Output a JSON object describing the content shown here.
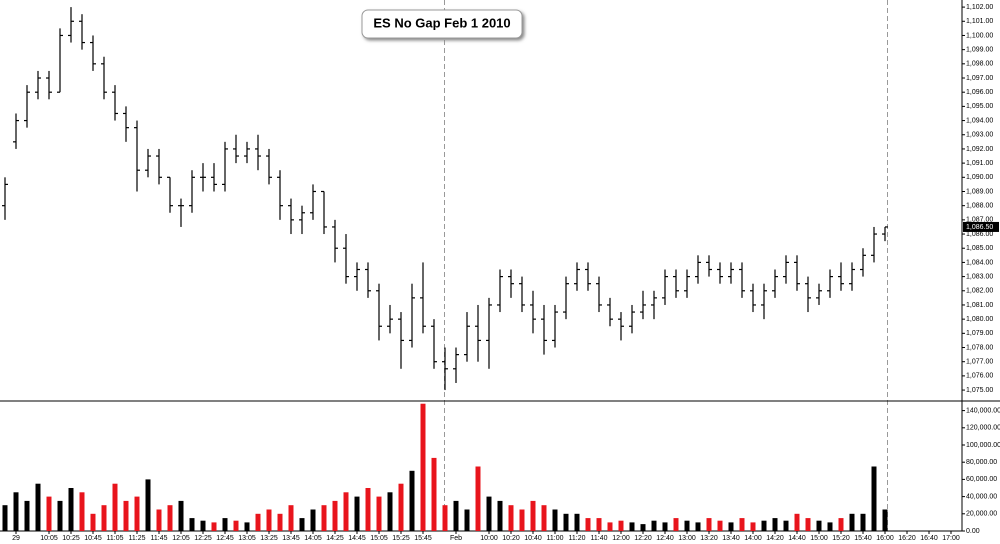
{
  "chart_data": {
    "type": "ohlc",
    "title": "ES No Gap Feb 1 2010",
    "categories": [
      null,
      "29",
      null,
      null,
      "10:05",
      null,
      "10:25",
      null,
      "10:45",
      null,
      "11:05",
      null,
      "11:25",
      null,
      "11:45",
      null,
      "12:05",
      null,
      "12:25",
      null,
      "12:45",
      null,
      "13:05",
      null,
      "13:25",
      null,
      "13:45",
      null,
      "14:05",
      null,
      "14:25",
      null,
      "14:45",
      null,
      "15:05",
      null,
      "15:25",
      null,
      "15:45",
      null,
      null,
      "Feb",
      null,
      null,
      "10:00",
      null,
      "10:20",
      null,
      "10:40",
      null,
      "11:00",
      null,
      "11:20",
      null,
      "11:40",
      null,
      "12:00",
      null,
      "12:20",
      null,
      "12:40",
      null,
      "13:00",
      null,
      "13:20",
      null,
      "13:40",
      null,
      "14:00",
      null,
      "14:20",
      null,
      "14:40",
      null,
      "15:00",
      null,
      "15:20",
      null,
      "15:40",
      null,
      "16:00",
      null,
      "16:20",
      null,
      "16:40",
      null,
      "17:00"
    ],
    "open": [
      1088,
      1092.5,
      1094,
      1096,
      1097,
      1096,
      1100,
      1101,
      1099.5,
      1098,
      1096,
      1094.5,
      1093.5,
      1090.5,
      1091.5,
      1090,
      1088,
      1088,
      1090,
      1090,
      1089.5,
      1092,
      1091.5,
      1092,
      1091.5,
      1090,
      1088,
      1087,
      1087.5,
      1089,
      1086.5,
      1085,
      1083,
      1083.5,
      1082,
      1079.5,
      1080,
      1078.5,
      1081.5,
      1079.5,
      1077,
      1076.5,
      1077.5,
      1079.5,
      1078.5,
      1081,
      1083,
      1082.5,
      1081,
      1080,
      1078.5,
      1080.5,
      1082.5,
      1083.5,
      1082.5,
      1081,
      1080,
      1079.5,
      1080.5,
      1081,
      1081.5,
      1083,
      1082,
      1083,
      1084,
      1083.5,
      1083,
      1083.5,
      1082,
      1081,
      1082,
      1083,
      1084,
      1082.5,
      1081.5,
      1082,
      1083,
      1082.5,
      1083.5,
      1084.5,
      1086,
      null,
      null,
      null,
      null,
      null,
      null
    ],
    "high": [
      1090,
      1094.5,
      1096.5,
      1097.5,
      1097.5,
      1100.5,
      1102,
      1101.5,
      1100,
      1098.5,
      1096.5,
      1095,
      1094,
      1092,
      1092,
      1090,
      1088.5,
      1090.5,
      1091,
      1091,
      1092.5,
      1093,
      1092.5,
      1093,
      1092,
      1090.5,
      1088.5,
      1088,
      1089.5,
      1089,
      1087,
      1086,
      1084,
      1084,
      1082.5,
      1081,
      1080.5,
      1082.5,
      1084,
      1080,
      1078,
      1078,
      1080.5,
      1081,
      1081.5,
      1083.5,
      1083.5,
      1083,
      1082,
      1081,
      1081,
      1083,
      1084,
      1084,
      1083,
      1081.5,
      1080.5,
      1081,
      1082,
      1082,
      1083.5,
      1083.5,
      1083.5,
      1084.5,
      1084.5,
      1084,
      1084,
      1084,
      1082.5,
      1082.5,
      1083.5,
      1084.5,
      1084.5,
      1083,
      1082.5,
      1083.5,
      1084,
      1084,
      1085,
      1086.5,
      1086.5,
      null,
      null,
      null,
      null,
      null,
      null
    ],
    "low": [
      1087,
      1092,
      1093.5,
      1095.5,
      1095.5,
      1096,
      1099.5,
      1099,
      1097.5,
      1095.5,
      1094,
      1092.5,
      1089,
      1090,
      1089.5,
      1087.5,
      1086.5,
      1087.5,
      1089,
      1089,
      1089,
      1091,
      1091,
      1090.5,
      1089.5,
      1087,
      1086,
      1086,
      1087,
      1086,
      1084,
      1082.5,
      1082,
      1081.5,
      1078.5,
      1079,
      1076.5,
      1078,
      1079,
      1076.5,
      1075,
      1075.5,
      1077,
      1077,
      1076.5,
      1080.5,
      1081.5,
      1080.5,
      1079,
      1077.5,
      1078,
      1080,
      1082,
      1082,
      1080.5,
      1079.5,
      1078.5,
      1079,
      1080,
      1080,
      1081,
      1081.5,
      1081.5,
      1082.5,
      1083,
      1082.5,
      1082.5,
      1081.5,
      1080.5,
      1080,
      1081.5,
      1082.5,
      1082,
      1080.5,
      1081,
      1081.5,
      1082,
      1082,
      1083,
      1084,
      1085.5,
      null,
      null,
      null,
      null,
      null,
      null
    ],
    "close": [
      1089.5,
      1094,
      1096,
      1097,
      1096,
      1100,
      1101,
      1099.5,
      1098,
      1096,
      1094.5,
      1093.5,
      1090.5,
      1091.5,
      1090,
      1088,
      1088,
      1090,
      1090,
      1089.5,
      1092,
      1091.5,
      1092,
      1091.5,
      1090,
      1088,
      1087,
      1087.5,
      1089,
      1086.5,
      1085,
      1083,
      1083.5,
      1082,
      1079.5,
      1080,
      1078.5,
      1081.5,
      1079.5,
      1077,
      1076.5,
      1077.5,
      1079.5,
      1078.5,
      1081,
      1083,
      1082.5,
      1081,
      1080,
      1078.5,
      1080.5,
      1082.5,
      1083.5,
      1082.5,
      1081,
      1080,
      1079.5,
      1080.5,
      1081,
      1081.5,
      1083,
      1082,
      1083,
      1084,
      1083.5,
      1083,
      1083.5,
      1082,
      1081,
      1082,
      1083,
      1084,
      1082.5,
      1081.5,
      1082,
      1083,
      1082.5,
      1083.5,
      1084.5,
      1086,
      1086.5,
      null,
      null,
      null,
      null,
      null,
      null
    ],
    "volume": [
      30000,
      45000,
      35000,
      55000,
      40000,
      35000,
      50000,
      45000,
      20000,
      30000,
      55000,
      35000,
      40000,
      60000,
      25000,
      30000,
      35000,
      15000,
      12000,
      10000,
      15000,
      12000,
      10000,
      20000,
      25000,
      20000,
      30000,
      15000,
      25000,
      30000,
      35000,
      45000,
      40000,
      50000,
      40000,
      45000,
      55000,
      70000,
      148000,
      85000,
      30000,
      35000,
      25000,
      75000,
      40000,
      35000,
      30000,
      25000,
      35000,
      30000,
      25000,
      20000,
      20000,
      15000,
      15000,
      10000,
      12000,
      10000,
      8000,
      12000,
      10000,
      15000,
      12000,
      10000,
      15000,
      12000,
      10000,
      15000,
      10000,
      12000,
      15000,
      12000,
      20000,
      15000,
      12000,
      10000,
      15000,
      20000,
      20000,
      75000,
      25000,
      null,
      null,
      null,
      null,
      null,
      null
    ],
    "up_color": "#000000",
    "down_color": "#e8141c",
    "ylim": [
      1074.3,
      1102.5
    ],
    "yticks": [
      {
        "value": 1075,
        "label": "1,075.00"
      },
      {
        "value": 1076,
        "label": "1,076.00"
      },
      {
        "value": 1077,
        "label": "1,077.00"
      },
      {
        "value": 1078,
        "label": "1,078.00"
      },
      {
        "value": 1079,
        "label": "1,079.00"
      },
      {
        "value": 1080,
        "label": "1,080.00"
      },
      {
        "value": 1081,
        "label": "1,081.00"
      },
      {
        "value": 1082,
        "label": "1,082.00"
      },
      {
        "value": 1083,
        "label": "1,083.00"
      },
      {
        "value": 1084,
        "label": "1,084.00"
      },
      {
        "value": 1085,
        "label": "1,085.00"
      },
      {
        "value": 1086,
        "label": "1,086.00"
      },
      {
        "value": 1087,
        "label": "1,087.00"
      },
      {
        "value": 1088,
        "label": "1,088.00"
      },
      {
        "value": 1089,
        "label": "1,089.00"
      },
      {
        "value": 1090,
        "label": "1,090.00"
      },
      {
        "value": 1091,
        "label": "1,091.00"
      },
      {
        "value": 1092,
        "label": "1,092.00"
      },
      {
        "value": 1093,
        "label": "1,093.00"
      },
      {
        "value": 1094,
        "label": "1,094.00"
      },
      {
        "value": 1095,
        "label": "1,095.00"
      },
      {
        "value": 1096,
        "label": "1,096.00"
      },
      {
        "value": 1097,
        "label": "1,097.00"
      },
      {
        "value": 1098,
        "label": "1,098.00"
      },
      {
        "value": 1099,
        "label": "1,099.00"
      },
      {
        "value": 1100,
        "label": "1,100.00"
      },
      {
        "value": 1101,
        "label": "1,101.00"
      },
      {
        "value": 1102,
        "label": "1,102.00"
      }
    ],
    "last_price": {
      "value": 1086.5,
      "label": "1,086.50"
    },
    "y2lim": [
      0,
      150000
    ],
    "y2ticks": [
      {
        "value": 0,
        "label": "0.00"
      },
      {
        "value": 20000,
        "label": "20,000.00"
      },
      {
        "value": 40000,
        "label": "40,000.00"
      },
      {
        "value": 60000,
        "label": "60,000.00"
      },
      {
        "value": 80000,
        "label": "80,000.00"
      },
      {
        "value": 100000,
        "label": "100,000.00"
      },
      {
        "value": 120000,
        "label": "120,000.00"
      },
      {
        "value": 140000,
        "label": "140,000.00"
      }
    ]
  }
}
